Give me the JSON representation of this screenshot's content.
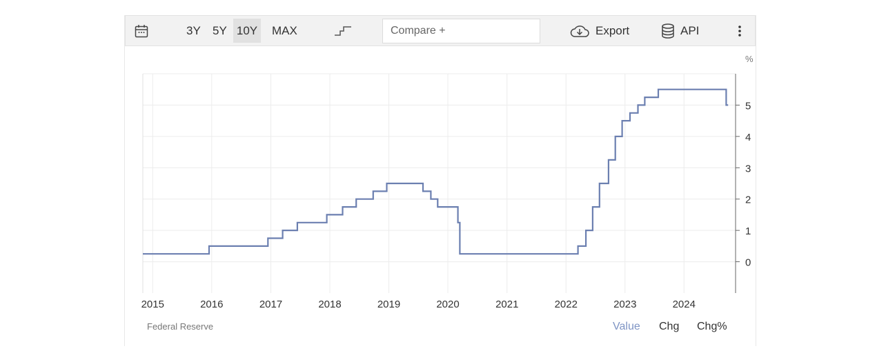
{
  "toolbar": {
    "calendar_icon": "calendar-icon",
    "ranges": [
      "3Y",
      "5Y",
      "10Y",
      "MAX"
    ],
    "active_range": "10Y",
    "step_icon": "step-line-icon",
    "compare_placeholder": "Compare +",
    "export_label": "Export",
    "export_icon": "cloud-download-icon",
    "api_label": "API",
    "api_icon": "database-icon",
    "more_icon": "more-vertical-icon"
  },
  "footer": {
    "source": "Federal Reserve",
    "tabs": [
      "Value",
      "Chg",
      "Chg%"
    ],
    "active_tab": "Value"
  },
  "colors": {
    "line": "#6b7fb0",
    "active_tab": "#7e94c4",
    "toolbar_bg": "#f2f2f2"
  },
  "chart_data": {
    "type": "line",
    "step": true,
    "unit_label": "%",
    "xlim": [
      "2014-11-01",
      "2024-11-15"
    ],
    "ylim": [
      -1,
      6
    ],
    "x_ticks": [
      "2015",
      "2016",
      "2017",
      "2018",
      "2019",
      "2020",
      "2021",
      "2022",
      "2023",
      "2024"
    ],
    "y_ticks": [
      0,
      1,
      2,
      3,
      4,
      5
    ],
    "grid": true,
    "y_axis_side": "right",
    "series": [
      {
        "points": [
          [
            "2014-11-01",
            0.25
          ],
          [
            "2015-12-16",
            0.5
          ],
          [
            "2016-12-14",
            0.75
          ],
          [
            "2017-03-15",
            1.0
          ],
          [
            "2017-06-14",
            1.25
          ],
          [
            "2017-12-13",
            1.5
          ],
          [
            "2018-03-21",
            1.75
          ],
          [
            "2018-06-13",
            2.0
          ],
          [
            "2018-09-26",
            2.25
          ],
          [
            "2018-12-19",
            2.5
          ],
          [
            "2019-07-31",
            2.25
          ],
          [
            "2019-09-18",
            2.0
          ],
          [
            "2019-10-30",
            1.75
          ],
          [
            "2020-03-03",
            1.25
          ],
          [
            "2020-03-15",
            0.25
          ],
          [
            "2022-03-16",
            0.5
          ],
          [
            "2022-05-04",
            1.0
          ],
          [
            "2022-06-15",
            1.75
          ],
          [
            "2022-07-27",
            2.5
          ],
          [
            "2022-09-21",
            3.25
          ],
          [
            "2022-11-02",
            4.0
          ],
          [
            "2022-12-14",
            4.5
          ],
          [
            "2023-02-01",
            4.75
          ],
          [
            "2023-03-22",
            5.0
          ],
          [
            "2023-05-03",
            5.25
          ],
          [
            "2023-07-26",
            5.5
          ],
          [
            "2024-09-18",
            5.0
          ],
          [
            "2024-09-30",
            5.0
          ]
        ]
      }
    ]
  }
}
